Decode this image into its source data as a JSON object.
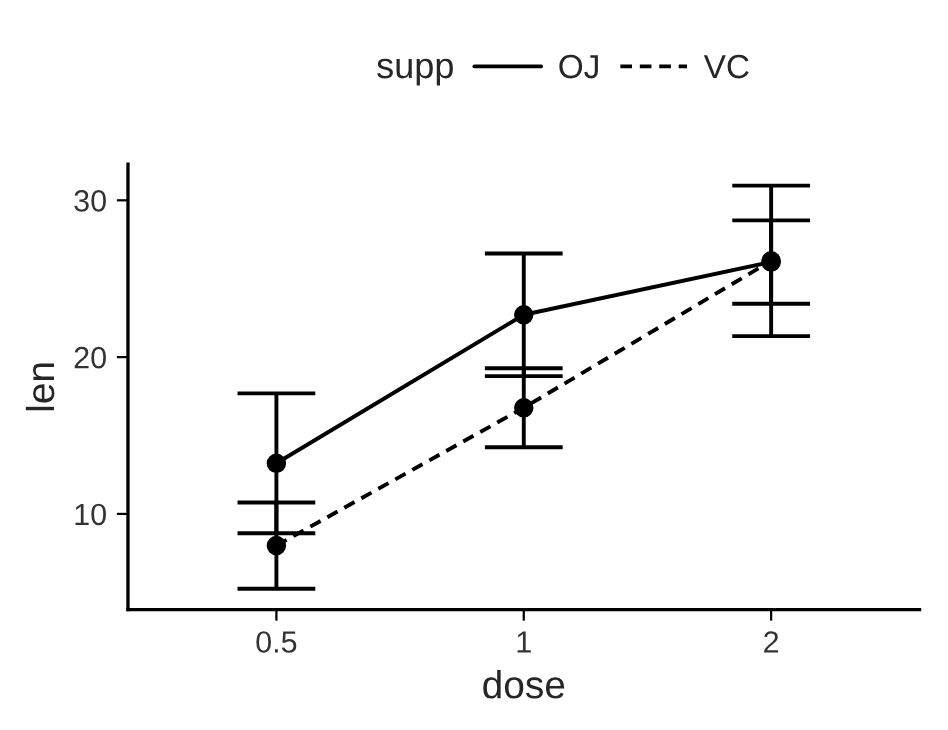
{
  "chart_data": {
    "type": "line",
    "xlabel": "dose",
    "ylabel": "len",
    "legend_title": "supp",
    "categories": [
      "0.5",
      "1",
      "2"
    ],
    "series": [
      {
        "name": "OJ",
        "color": "#000000",
        "line_style": "solid",
        "values": [
          13.23,
          22.7,
          26.06
        ],
        "errors": [
          4.46,
          3.91,
          2.66
        ]
      },
      {
        "name": "VC",
        "color": "#000000",
        "line_style": "dashed",
        "values": [
          7.98,
          16.77,
          26.14
        ],
        "errors": [
          2.75,
          2.52,
          4.8
        ]
      }
    ],
    "ylim": [
      3.9,
      32.3
    ],
    "yticks": [
      10,
      20,
      30
    ],
    "marker": "circle",
    "grid": false,
    "legend": "top"
  }
}
